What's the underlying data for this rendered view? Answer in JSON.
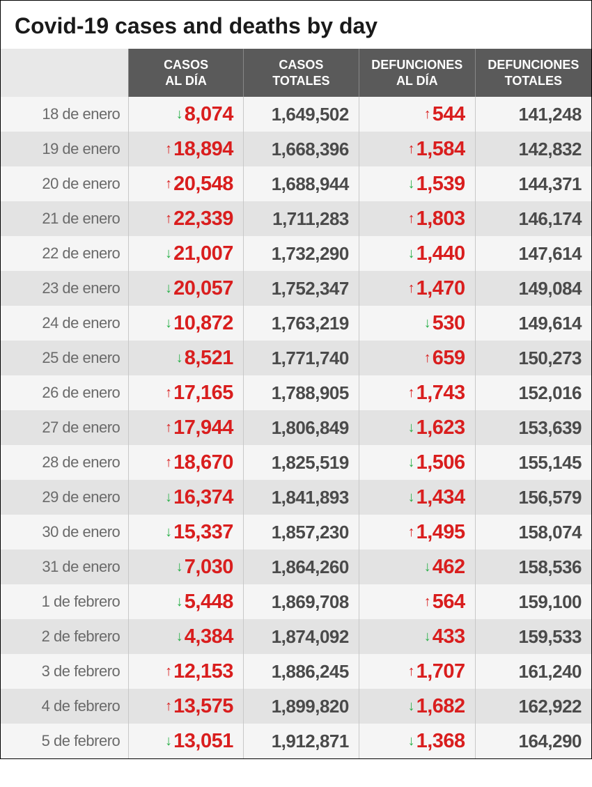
{
  "title": "Covid-19 cases and deaths by day",
  "colors": {
    "header_bg": "#5a5a5a",
    "header_fg": "#ffffff",
    "row_even": "#f5f5f5",
    "row_odd": "#e3e3e3",
    "value_red": "#d91e1e",
    "arrow_up": "#d91e1e",
    "arrow_down": "#2bb04a",
    "date_fg": "#6a6a6a",
    "total_fg": "#4a4a4a"
  },
  "columns": [
    {
      "line1": "",
      "line2": ""
    },
    {
      "line1": "CASOS",
      "line2": "AL DÍA"
    },
    {
      "line1": "CASOS",
      "line2": "TOTALES"
    },
    {
      "line1": "DEFUNCIONES",
      "line2": "AL DÍA"
    },
    {
      "line1": "DEFUNCIONES",
      "line2": "TOTALES"
    }
  ],
  "rows": [
    {
      "date": "18 de enero",
      "cases_dir": "down",
      "cases_day": "8,074",
      "cases_total": "1,649,502",
      "deaths_dir": "up",
      "deaths_day": "544",
      "deaths_total": "141,248"
    },
    {
      "date": "19 de enero",
      "cases_dir": "up",
      "cases_day": "18,894",
      "cases_total": "1,668,396",
      "deaths_dir": "up",
      "deaths_day": "1,584",
      "deaths_total": "142,832"
    },
    {
      "date": "20 de enero",
      "cases_dir": "up",
      "cases_day": "20,548",
      "cases_total": "1,688,944",
      "deaths_dir": "down",
      "deaths_day": "1,539",
      "deaths_total": "144,371"
    },
    {
      "date": "21 de enero",
      "cases_dir": "up",
      "cases_day": "22,339",
      "cases_total": "1,711,283",
      "deaths_dir": "up",
      "deaths_day": "1,803",
      "deaths_total": "146,174"
    },
    {
      "date": "22 de enero",
      "cases_dir": "down",
      "cases_day": "21,007",
      "cases_total": "1,732,290",
      "deaths_dir": "down",
      "deaths_day": "1,440",
      "deaths_total": "147,614"
    },
    {
      "date": "23 de enero",
      "cases_dir": "down",
      "cases_day": "20,057",
      "cases_total": "1,752,347",
      "deaths_dir": "up",
      "deaths_day": "1,470",
      "deaths_total": "149,084"
    },
    {
      "date": "24 de enero",
      "cases_dir": "down",
      "cases_day": "10,872",
      "cases_total": "1,763,219",
      "deaths_dir": "down",
      "deaths_day": "530",
      "deaths_total": "149,614"
    },
    {
      "date": "25 de enero",
      "cases_dir": "down",
      "cases_day": "8,521",
      "cases_total": "1,771,740",
      "deaths_dir": "up",
      "deaths_day": "659",
      "deaths_total": "150,273"
    },
    {
      "date": "26 de enero",
      "cases_dir": "up",
      "cases_day": "17,165",
      "cases_total": "1,788,905",
      "deaths_dir": "up",
      "deaths_day": "1,743",
      "deaths_total": "152,016"
    },
    {
      "date": "27 de enero",
      "cases_dir": "up",
      "cases_day": "17,944",
      "cases_total": "1,806,849",
      "deaths_dir": "down",
      "deaths_day": "1,623",
      "deaths_total": "153,639"
    },
    {
      "date": "28 de enero",
      "cases_dir": "up",
      "cases_day": "18,670",
      "cases_total": "1,825,519",
      "deaths_dir": "down",
      "deaths_day": "1,506",
      "deaths_total": "155,145"
    },
    {
      "date": "29 de enero",
      "cases_dir": "down",
      "cases_day": "16,374",
      "cases_total": "1,841,893",
      "deaths_dir": "down",
      "deaths_day": "1,434",
      "deaths_total": "156,579"
    },
    {
      "date": "30 de enero",
      "cases_dir": "down",
      "cases_day": "15,337",
      "cases_total": "1,857,230",
      "deaths_dir": "up",
      "deaths_day": "1,495",
      "deaths_total": "158,074"
    },
    {
      "date": "31 de enero",
      "cases_dir": "down",
      "cases_day": "7,030",
      "cases_total": "1,864,260",
      "deaths_dir": "down",
      "deaths_day": "462",
      "deaths_total": "158,536"
    },
    {
      "date": "1 de febrero",
      "cases_dir": "down",
      "cases_day": "5,448",
      "cases_total": "1,869,708",
      "deaths_dir": "up",
      "deaths_day": "564",
      "deaths_total": "159,100"
    },
    {
      "date": "2 de febrero",
      "cases_dir": "down",
      "cases_day": "4,384",
      "cases_total": "1,874,092",
      "deaths_dir": "down",
      "deaths_day": "433",
      "deaths_total": "159,533"
    },
    {
      "date": "3 de febrero",
      "cases_dir": "up",
      "cases_day": "12,153",
      "cases_total": "1,886,245",
      "deaths_dir": "up",
      "deaths_day": "1,707",
      "deaths_total": "161,240"
    },
    {
      "date": "4 de febrero",
      "cases_dir": "up",
      "cases_day": "13,575",
      "cases_total": "1,899,820",
      "deaths_dir": "down",
      "deaths_day": "1,682",
      "deaths_total": "162,922"
    },
    {
      "date": "5 de febrero",
      "cases_dir": "down",
      "cases_day": "13,051",
      "cases_total": "1,912,871",
      "deaths_dir": "down",
      "deaths_day": "1,368",
      "deaths_total": "164,290"
    }
  ]
}
